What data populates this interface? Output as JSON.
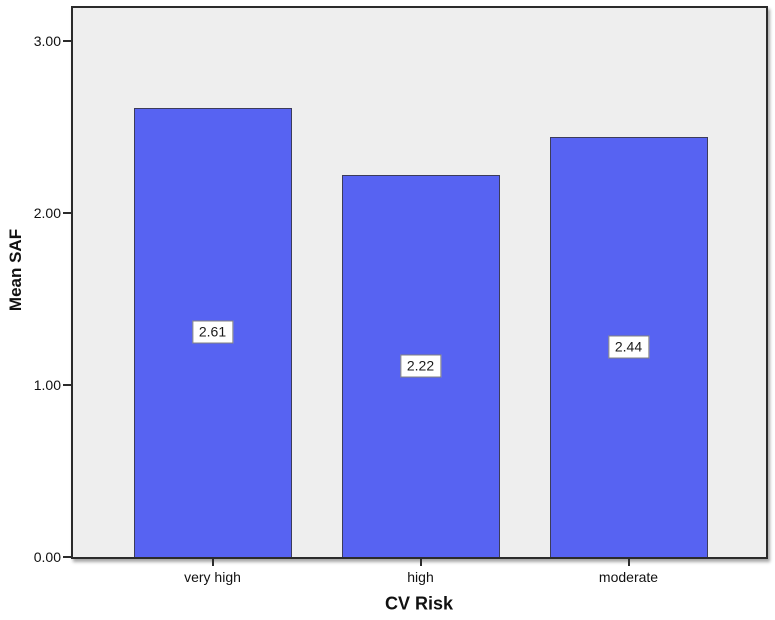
{
  "chart_data": {
    "type": "bar",
    "title": "",
    "xlabel": "CV Risk",
    "ylabel": "Mean SAF",
    "categories": [
      "very high",
      "high",
      "moderate"
    ],
    "values": [
      2.61,
      2.22,
      2.44
    ],
    "bar_labels": [
      "2.61",
      "2.22",
      "2.44"
    ],
    "y_ticks": [
      "0.00",
      "1.00",
      "2.00",
      "3.00"
    ],
    "ylim": [
      0,
      3.19
    ],
    "grid": false,
    "legend": false,
    "layout_hints": {
      "plot_background": "#EEEEEE",
      "frame_border_color": "#2B2B2B",
      "bar_fill_color": "#5763F2",
      "bar_border_color": "#3C3C5A",
      "value_label_box_background": "#FFFFFF",
      "value_label_box_border": "#808080",
      "value_label_position": "middle-of-bar",
      "legend_position": "none"
    }
  }
}
